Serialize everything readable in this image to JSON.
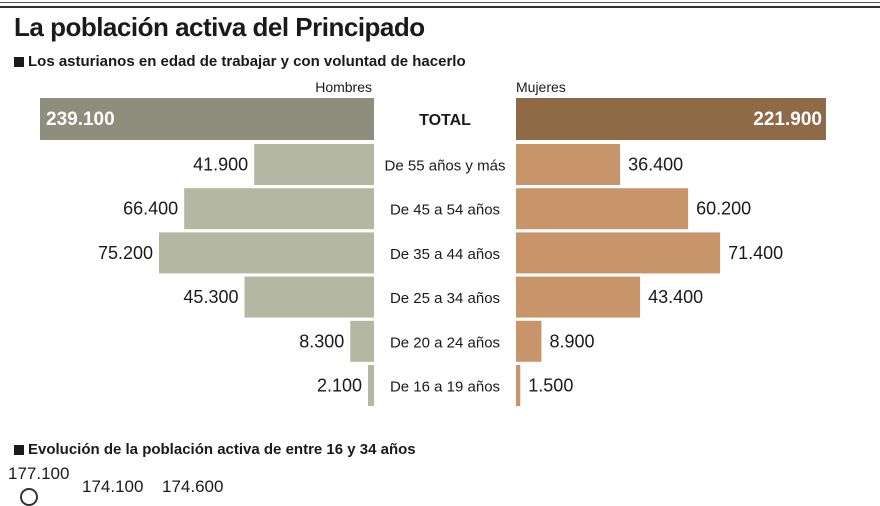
{
  "title": "La población activa del Principado",
  "subtitle": "Los asturianos en edad de trabajar y con voluntad de hacerlo",
  "chart_data": {
    "type": "bar",
    "title": "Los asturianos en edad de trabajar y con voluntad de hacerlo",
    "legend": {
      "left": "Hombres",
      "right": "Mujeres"
    },
    "total": {
      "label": "TOTAL",
      "hombres": 239100,
      "mujeres": 221900,
      "hombres_label": "239.100",
      "mujeres_label": "221.900"
    },
    "categories": [
      "De 55 años y más",
      "De 45 a 54 años",
      "De 35 a 44 años",
      "De 25 a 34 años",
      "De 20 a 24 años",
      "De 16 a 19 años"
    ],
    "series": [
      {
        "name": "Hombres",
        "values": [
          41900,
          66400,
          75200,
          45300,
          8300,
          2100
        ],
        "labels": [
          "41.900",
          "66.400",
          "75.200",
          "45.300",
          "8.300",
          "2.100"
        ]
      },
      {
        "name": "Mujeres",
        "values": [
          36400,
          60200,
          71400,
          43400,
          8900,
          1500
        ],
        "labels": [
          "36.400",
          "60.200",
          "71.400",
          "43.400",
          "8.900",
          "1.500"
        ]
      }
    ],
    "colors": {
      "total_hombres": "#8d8e7c",
      "total_mujeres": "#8f6a47",
      "hombres": "#b4b8a2",
      "mujeres": "#c8956a"
    }
  },
  "evolution": {
    "title": "Evolución de la población activa de entre 16 y 34 años",
    "visible_values": [
      "177.100",
      "174.100",
      "174.600"
    ]
  }
}
